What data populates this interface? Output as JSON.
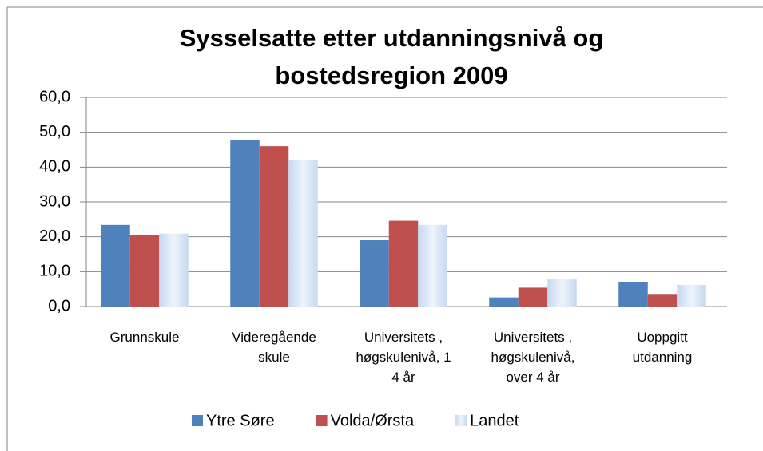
{
  "chart_data": {
    "type": "bar",
    "title": "Sysselsatte etter utdanningsnivå og bostedsregion 2009",
    "categories": [
      "Grunnskule",
      "Videregående skule",
      "Universitets , høgskulenivå, 1 4 år",
      "Universitets , høgskulenivå, over 4 år",
      "Uoppgitt utdanning"
    ],
    "series": [
      {
        "name": "Ytre Søre",
        "color": "#4f81bd",
        "values": [
          23.4,
          47.8,
          19.0,
          2.6,
          7.1
        ]
      },
      {
        "name": "Volda/Ørsta",
        "color": "#c0504d",
        "values": [
          20.4,
          46.0,
          24.6,
          5.4,
          3.6
        ]
      },
      {
        "name": "Landet",
        "color": "#c6d9f1",
        "values": [
          20.9,
          42.0,
          23.4,
          7.8,
          6.2
        ]
      }
    ],
    "ylim": [
      0,
      60
    ],
    "yticks": [
      {
        "value": 0,
        "label": "0,0"
      },
      {
        "value": 10,
        "label": "10,0"
      },
      {
        "value": 20,
        "label": "20,0"
      },
      {
        "value": 30,
        "label": "30,0"
      },
      {
        "value": 40,
        "label": "40,0"
      },
      {
        "value": 50,
        "label": "50,0"
      },
      {
        "value": 60,
        "label": "60,0"
      }
    ],
    "grid": true,
    "legend": "bottom"
  }
}
